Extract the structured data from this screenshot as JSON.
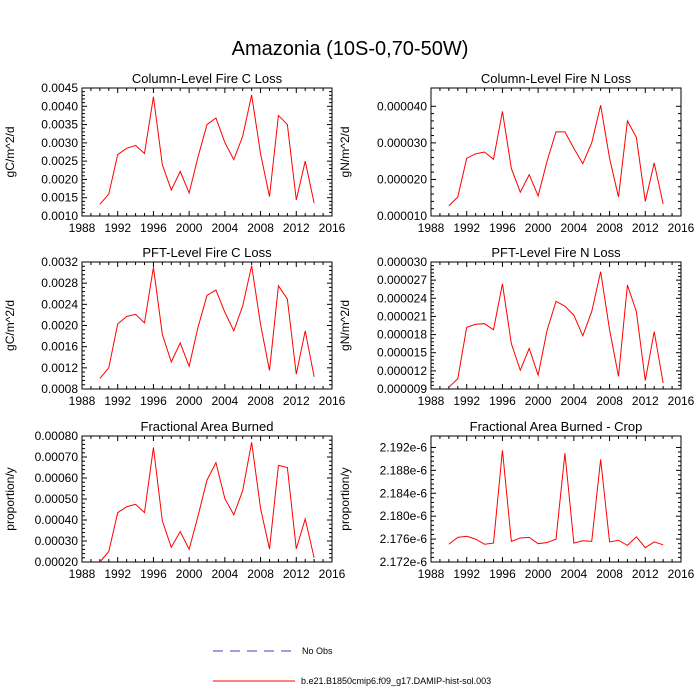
{
  "title": "Amazonia (10S-0,70-50W)",
  "colors": {
    "series": "#ff0000",
    "obs": "#4040c0",
    "axis": "#000000"
  },
  "legend": {
    "obs_label": "No Obs",
    "model_label": "b.e21.B1850cmip6.f09_g17.DAMIP-hist-sol.003"
  },
  "chart_data": [
    {
      "type": "line",
      "title": "Column-Level Fire C Loss",
      "ylabel": "gC/m^2/d",
      "xlim": [
        1988,
        2016
      ],
      "ylim": [
        0.001,
        0.0045
      ],
      "xticks": [
        "1988",
        "1992",
        "1996",
        "2000",
        "2004",
        "2008",
        "2012",
        "2016"
      ],
      "yticks": [
        "0.0010",
        "0.0015",
        "0.0020",
        "0.0025",
        "0.0030",
        "0.0035",
        "0.0040",
        "0.0045"
      ],
      "x": [
        1990,
        1991,
        1992,
        1993,
        1994,
        1995,
        1996,
        1997,
        1998,
        1999,
        2000,
        2001,
        2002,
        2003,
        2004,
        2005,
        2006,
        2007,
        2008,
        2009,
        2010,
        2011,
        2012,
        2013,
        2014
      ],
      "values": [
        0.00132,
        0.0016,
        0.00268,
        0.00285,
        0.00293,
        0.00271,
        0.00426,
        0.0024,
        0.00171,
        0.00222,
        0.00163,
        0.00262,
        0.0035,
        0.00368,
        0.00301,
        0.00254,
        0.00318,
        0.00431,
        0.0027,
        0.00153,
        0.00375,
        0.0035,
        0.00144,
        0.0025,
        0.00135
      ]
    },
    {
      "type": "line",
      "title": "Column-Level Fire N Loss",
      "ylabel": "gN/m^2/d",
      "xlim": [
        1988,
        2016
      ],
      "ylim": [
        1e-05,
        4.5e-05
      ],
      "xticks": [
        "1988",
        "1992",
        "1996",
        "2000",
        "2004",
        "2008",
        "2012",
        "2016"
      ],
      "yticks": [
        "0.000010",
        "0.000020",
        "0.000030",
        "0.000040"
      ],
      "x": [
        1990,
        1991,
        1992,
        1993,
        1994,
        1995,
        1996,
        1997,
        1998,
        1999,
        2000,
        2001,
        2002,
        2003,
        2004,
        2005,
        2006,
        2007,
        2008,
        2009,
        2010,
        2011,
        2012,
        2013,
        2014
      ],
      "values": [
        1.28e-05,
        1.52e-05,
        2.58e-05,
        2.7e-05,
        2.75e-05,
        2.55e-05,
        3.86e-05,
        2.3e-05,
        1.65e-05,
        2.13e-05,
        1.55e-05,
        2.5e-05,
        3.3e-05,
        3.3e-05,
        2.85e-05,
        2.43e-05,
        3e-05,
        4.03e-05,
        2.58e-05,
        1.52e-05,
        3.6e-05,
        3.15e-05,
        1.4e-05,
        2.45e-05,
        1.33e-05
      ]
    },
    {
      "type": "line",
      "title": "PFT-Level Fire C Loss",
      "ylabel": "gC/m^2/d",
      "xlim": [
        1988,
        2016
      ],
      "ylim": [
        0.0008,
        0.0032
      ],
      "xticks": [
        "1988",
        "1992",
        "1996",
        "2000",
        "2004",
        "2008",
        "2012",
        "2016"
      ],
      "yticks": [
        "0.0008",
        "0.0012",
        "0.0016",
        "0.0020",
        "0.0024",
        "0.0028",
        "0.0032"
      ],
      "x": [
        1990,
        1991,
        1992,
        1993,
        1994,
        1995,
        1996,
        1997,
        1998,
        1999,
        2000,
        2001,
        2002,
        2003,
        2004,
        2005,
        2006,
        2007,
        2008,
        2009,
        2010,
        2011,
        2012,
        2013,
        2014
      ],
      "values": [
        0.001,
        0.0012,
        0.00203,
        0.00217,
        0.00221,
        0.00205,
        0.0031,
        0.00183,
        0.00131,
        0.00167,
        0.00123,
        0.00197,
        0.00257,
        0.00267,
        0.00225,
        0.0019,
        0.00237,
        0.00313,
        0.00202,
        0.00115,
        0.00275,
        0.0025,
        0.00108,
        0.0019,
        0.00103
      ]
    },
    {
      "type": "line",
      "title": "PFT-Level Fire N Loss",
      "ylabel": "gN/m^2/d",
      "xlim": [
        1988,
        2016
      ],
      "ylim": [
        9e-06,
        3e-05
      ],
      "xticks": [
        "1988",
        "1992",
        "1996",
        "2000",
        "2004",
        "2008",
        "2012",
        "2016"
      ],
      "yticks": [
        "0.000009",
        "0.000012",
        "0.000015",
        "0.000018",
        "0.000021",
        "0.000024",
        "0.000027",
        "0.000030"
      ],
      "x": [
        1990,
        1991,
        1992,
        1993,
        1994,
        1995,
        1996,
        1997,
        1998,
        1999,
        2000,
        2001,
        2002,
        2003,
        2004,
        2005,
        2006,
        2007,
        2008,
        2009,
        2010,
        2011,
        2012,
        2013,
        2014
      ],
      "values": [
        9.3e-06,
        1.07e-05,
        1.92e-05,
        1.97e-05,
        1.98e-05,
        1.88e-05,
        2.64e-05,
        1.65e-05,
        1.21e-05,
        1.57e-05,
        1.13e-05,
        1.87e-05,
        2.35e-05,
        2.27e-05,
        2.12e-05,
        1.78e-05,
        2.18e-05,
        2.84e-05,
        1.88e-05,
        1.11e-05,
        2.62e-05,
        2.18e-05,
        1.04e-05,
        1.85e-05,
        1e-05
      ]
    },
    {
      "type": "line",
      "title": "Fractional Area Burned",
      "ylabel": "proportion/y",
      "xlim": [
        1988,
        2016
      ],
      "ylim": [
        0.0002,
        0.0008
      ],
      "xticks": [
        "1988",
        "1992",
        "1996",
        "2000",
        "2004",
        "2008",
        "2012",
        "2016"
      ],
      "yticks": [
        "0.00020",
        "0.00030",
        "0.00040",
        "0.00050",
        "0.00060",
        "0.00070",
        "0.00080"
      ],
      "x": [
        1990,
        1991,
        1992,
        1993,
        1994,
        1995,
        1996,
        1997,
        1998,
        1999,
        2000,
        2001,
        2002,
        2003,
        2004,
        2005,
        2006,
        2007,
        2008,
        2009,
        2010,
        2011,
        2012,
        2013,
        2014
      ],
      "values": [
        0.0002,
        0.00025,
        0.000435,
        0.000463,
        0.000475,
        0.000435,
        0.000745,
        0.000395,
        0.00027,
        0.000345,
        0.00026,
        0.00042,
        0.00059,
        0.000673,
        0.000502,
        0.000425,
        0.00054,
        0.00077,
        0.000455,
        0.000262,
        0.00066,
        0.00065,
        0.000263,
        0.000405,
        0.00022
      ]
    },
    {
      "type": "line",
      "title": "Fractional Area Burned - Crop",
      "ylabel": "proportion/y",
      "xlim": [
        1988,
        2016
      ],
      "ylim": [
        2.172e-06,
        2.194e-06
      ],
      "xticks": [
        "1988",
        "1992",
        "1996",
        "2000",
        "2004",
        "2008",
        "2012",
        "2016"
      ],
      "yticks": [
        "2.172e-6",
        "2.176e-6",
        "2.180e-6",
        "2.184e-6",
        "2.188e-6",
        "2.192e-6"
      ],
      "x": [
        1990,
        1991,
        1992,
        1993,
        1994,
        1995,
        1996,
        1997,
        1998,
        1999,
        2000,
        2001,
        2002,
        2003,
        2004,
        2005,
        2006,
        2007,
        2008,
        2009,
        2010,
        2011,
        2012,
        2013,
        2014
      ],
      "values": [
        2.1751e-06,
        2.1763e-06,
        2.1765e-06,
        2.176e-06,
        2.1751e-06,
        2.1753e-06,
        2.1915e-06,
        2.1756e-06,
        2.1762e-06,
        2.1763e-06,
        2.1752e-06,
        2.1754e-06,
        2.176e-06,
        2.191e-06,
        2.1753e-06,
        2.1757e-06,
        2.1756e-06,
        2.1899e-06,
        2.1755e-06,
        2.1758e-06,
        2.1749e-06,
        2.1764e-06,
        2.1745e-06,
        2.1755e-06,
        2.175e-06
      ]
    }
  ]
}
